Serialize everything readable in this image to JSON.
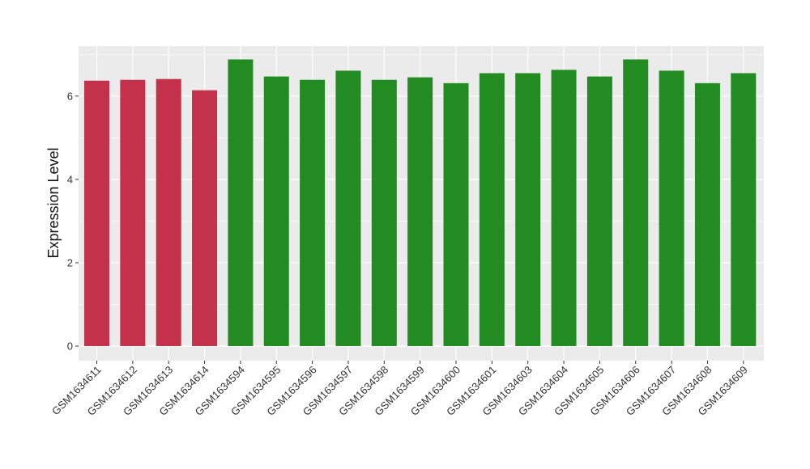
{
  "chart_data": {
    "type": "bar",
    "title": "",
    "xlabel": "",
    "ylabel": "Expression Level",
    "ylim": [
      -0.35,
      7.2
    ],
    "yticks": [
      0,
      2,
      4,
      6
    ],
    "grid": true,
    "panel_background": "#ebebeb",
    "grid_color": "#ffffff",
    "colors": {
      "group_a": "#c3314b",
      "group_b": "#228b22"
    },
    "categories": [
      "GSM1634611",
      "GSM1634612",
      "GSM1634613",
      "GSM1634614",
      "GSM1634594",
      "GSM1634595",
      "GSM1634596",
      "GSM1634597",
      "GSM1634598",
      "GSM1634599",
      "GSM1634600",
      "GSM1634601",
      "GSM1634603",
      "GSM1634604",
      "GSM1634605",
      "GSM1634606",
      "GSM1634607",
      "GSM1634608",
      "GSM1634609"
    ],
    "values": [
      6.37,
      6.39,
      6.41,
      6.14,
      6.88,
      6.47,
      6.39,
      6.61,
      6.39,
      6.45,
      6.31,
      6.55,
      6.55,
      6.63,
      6.47,
      6.88,
      6.61,
      6.31,
      6.55
    ],
    "groups": [
      "group_a",
      "group_a",
      "group_a",
      "group_a",
      "group_b",
      "group_b",
      "group_b",
      "group_b",
      "group_b",
      "group_b",
      "group_b",
      "group_b",
      "group_b",
      "group_b",
      "group_b",
      "group_b",
      "group_b",
      "group_b",
      "group_b"
    ]
  }
}
